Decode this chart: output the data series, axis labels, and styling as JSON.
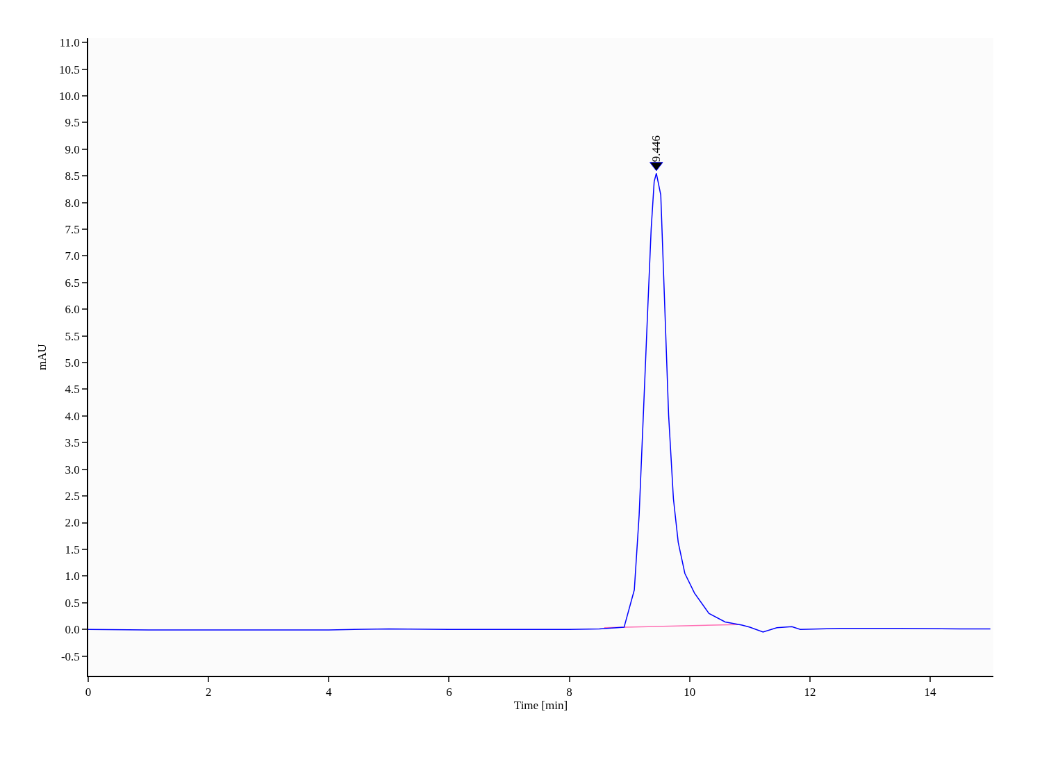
{
  "chart_data": {
    "type": "line",
    "xlabel": "Time [min]",
    "ylabel": "mAU",
    "xlim": [
      0,
      15.05
    ],
    "ylim": [
      -0.87,
      11.08
    ],
    "xticks": [
      0,
      2,
      4,
      6,
      8,
      10,
      12,
      14
    ],
    "yticks": [
      {
        "value": -0.5,
        "label": "-0.5"
      },
      {
        "value": 0,
        "label": "0.0"
      },
      {
        "value": 0.5,
        "label": "0.5"
      },
      {
        "value": 1,
        "label": "1.0"
      },
      {
        "value": 1.5,
        "label": "1.5"
      },
      {
        "value": 2,
        "label": "2.0"
      },
      {
        "value": 2.5,
        "label": "2.5"
      },
      {
        "value": 3,
        "label": "3.0"
      },
      {
        "value": 3.5,
        "label": "3.5"
      },
      {
        "value": 4,
        "label": "4.0"
      },
      {
        "value": 4.5,
        "label": "4.5"
      },
      {
        "value": 5,
        "label": "5.0"
      },
      {
        "value": 5.5,
        "label": "5.5"
      },
      {
        "value": 6,
        "label": "6.0"
      },
      {
        "value": 6.5,
        "label": "6.5"
      },
      {
        "value": 7,
        "label": "7.0"
      },
      {
        "value": 7.5,
        "label": "7.5"
      },
      {
        "value": 8,
        "label": "8.0"
      },
      {
        "value": 8.5,
        "label": "8.5"
      },
      {
        "value": 9,
        "label": "9.0"
      },
      {
        "value": 9.5,
        "label": "9.5"
      },
      {
        "value": 10,
        "label": "10.0"
      },
      {
        "value": 10.5,
        "label": "10.5"
      },
      {
        "value": 11,
        "label": "11.0"
      }
    ],
    "marker": "none",
    "line_style": "solid",
    "annotations": [
      {
        "text": "9.446",
        "x": 9.446,
        "y": 8.55
      }
    ],
    "series": [
      {
        "type": "scatter",
        "marker": "triangle",
        "color": "#000000",
        "x": [
          9.446
        ],
        "values": [
          8.7
        ]
      },
      {
        "color": "#ff6eb4",
        "x": [
          8.58,
          10.8
        ],
        "values": [
          0.03,
          0.09
        ]
      },
      {
        "color": "#0000ff",
        "x": [
          0,
          1,
          2,
          3,
          4,
          5,
          6,
          7,
          8,
          8.5,
          8.91,
          9.08,
          9.16,
          9.23,
          9.3,
          9.36,
          9.41,
          9.446,
          9.52,
          9.58,
          9.65,
          9.73,
          9.81,
          9.92,
          10.08,
          10.32,
          10.59,
          10.87,
          11.0,
          11.22,
          11.45,
          11.7,
          11.84,
          12.5,
          13.5,
          14.5,
          15.0
        ],
        "values": [
          0,
          -0.01,
          -0.01,
          -0.01,
          -0.01,
          0.01,
          0,
          0,
          0,
          0.01,
          0.04,
          0.74,
          2.14,
          4.02,
          5.92,
          7.5,
          8.39,
          8.55,
          8.14,
          6.24,
          4.02,
          2.45,
          1.63,
          1.05,
          0.68,
          0.3,
          0.14,
          0.08,
          0.04,
          -0.05,
          0.03,
          0.05,
          0.0,
          0.02,
          0.02,
          0.01,
          0.01
        ]
      }
    ]
  }
}
